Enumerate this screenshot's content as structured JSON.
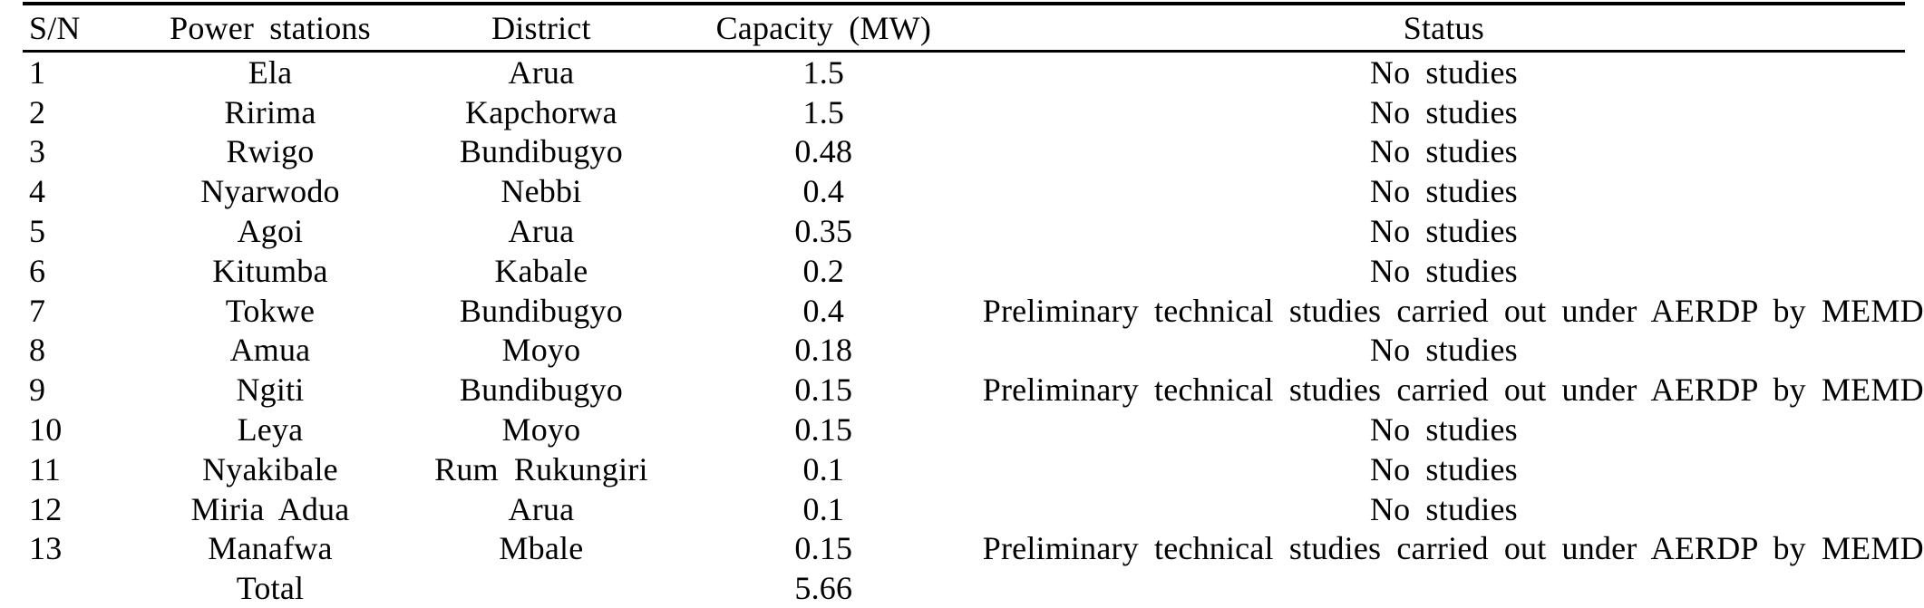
{
  "table": {
    "title": "small-hydro-power-stations-table",
    "columns": [
      {
        "key": "sn",
        "label": "S/N"
      },
      {
        "key": "station",
        "label": "Power stations"
      },
      {
        "key": "district",
        "label": "District"
      },
      {
        "key": "capacity",
        "label": "Capacity (MW)"
      },
      {
        "key": "status",
        "label": "Status"
      }
    ],
    "rows": [
      [
        "1",
        "Ela",
        "Arua",
        "1.5",
        "No studies"
      ],
      [
        "2",
        "Ririma",
        "Kapchorwa",
        "1.5",
        "No studies"
      ],
      [
        "3",
        "Rwigo",
        "Bundibugyo",
        "0.48",
        "No studies"
      ],
      [
        "4",
        "Nyarwodo",
        "Nebbi",
        "0.4",
        "No studies"
      ],
      [
        "5",
        "Agoi",
        "Arua",
        "0.35",
        "No studies"
      ],
      [
        "6",
        "Kitumba",
        "Kabale",
        "0.2",
        "No studies"
      ],
      [
        "7",
        "Tokwe",
        "Bundibugyo",
        "0.4",
        "Preliminary technical studies carried out under AERDP by MEMD"
      ],
      [
        "8",
        "Amua",
        "Moyo",
        "0.18",
        "No studies"
      ],
      [
        "9",
        "Ngiti",
        "Bundibugyo",
        "0.15",
        "Preliminary technical studies carried out under AERDP by MEMD"
      ],
      [
        "10",
        "Leya",
        "Moyo",
        "0.15",
        "No studies"
      ],
      [
        "11",
        "Nyakibale",
        "Rum Rukungiri",
        "0.1",
        "No studies"
      ],
      [
        "12",
        "Miria Adua",
        "Arua",
        "0.1",
        "No studies"
      ],
      [
        "13",
        "Manafwa",
        "Mbale",
        "0.15",
        "Preliminary technical studies carried out under AERDP by MEMD"
      ]
    ],
    "total_row": [
      "",
      "Total",
      "",
      "5.66",
      ""
    ]
  }
}
